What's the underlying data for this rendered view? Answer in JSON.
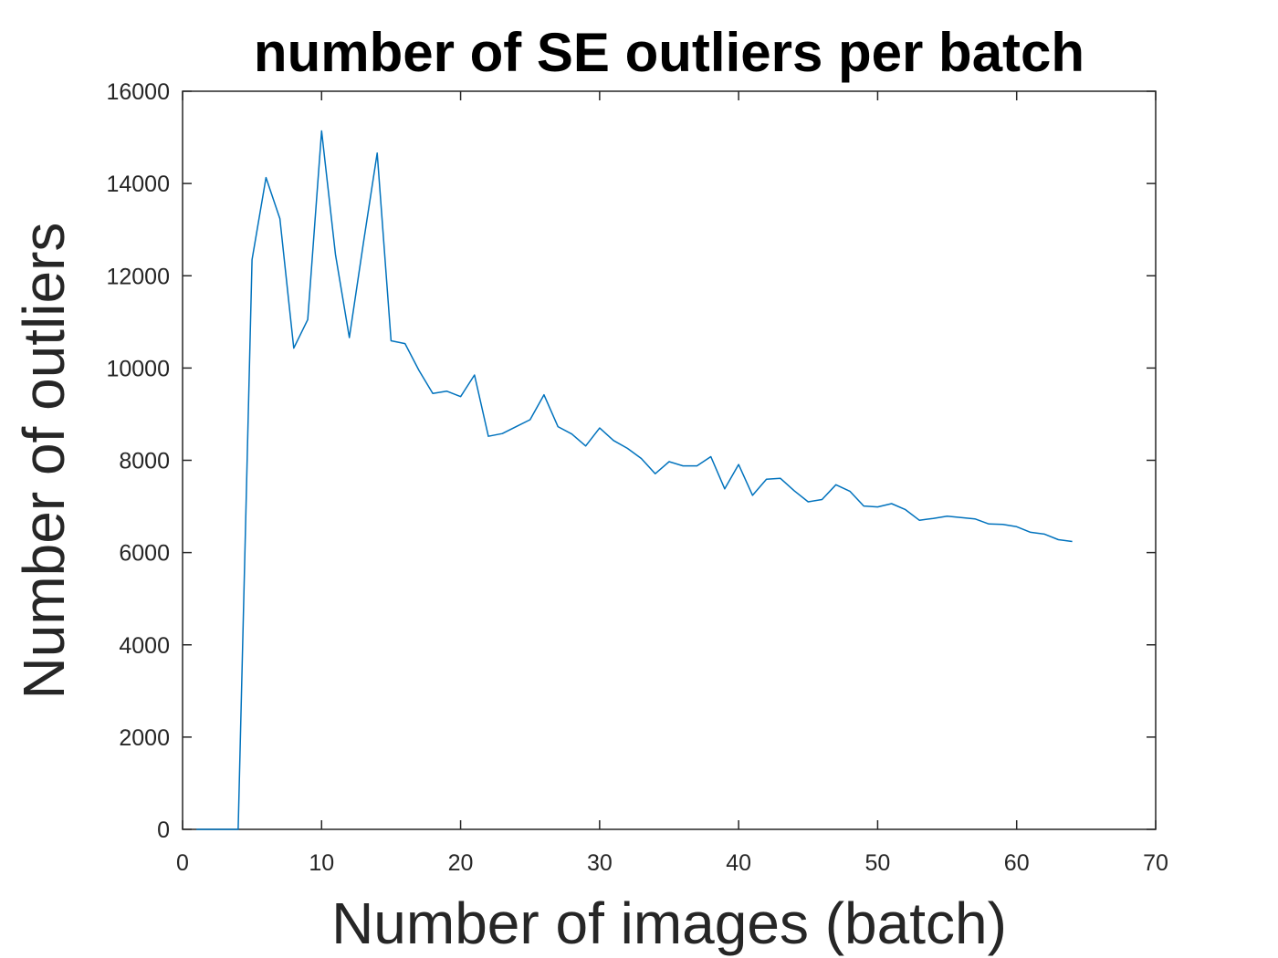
{
  "chart_data": {
    "type": "line",
    "title": "number of SE outliers per batch",
    "xlabel": "Number of images (batch)",
    "ylabel": "Number of outliers",
    "xlim": [
      0,
      70
    ],
    "ylim": [
      0,
      16000
    ],
    "xticks": [
      0,
      10,
      20,
      30,
      40,
      50,
      60,
      70
    ],
    "yticks": [
      0,
      2000,
      4000,
      6000,
      8000,
      10000,
      12000,
      14000,
      16000
    ],
    "grid": false,
    "box": true,
    "series": [
      {
        "color": "#0072BD",
        "x": [
          1,
          2,
          3,
          4,
          5,
          6,
          7,
          8,
          9,
          10,
          11,
          12,
          13,
          14,
          15,
          16,
          17,
          18,
          19,
          20,
          21,
          22,
          23,
          24,
          25,
          26,
          27,
          28,
          29,
          30,
          31,
          32,
          33,
          34,
          35,
          36,
          37,
          38,
          39,
          40,
          41,
          42,
          43,
          44,
          45,
          46,
          47,
          48,
          49,
          50,
          51,
          52,
          53,
          54,
          55,
          56,
          57,
          58,
          59,
          60,
          61,
          62,
          63,
          64
        ],
        "y": [
          0,
          0,
          0,
          0,
          12350,
          14130,
          13240,
          10430,
          11050,
          15140,
          12460,
          10660,
          12700,
          14660,
          10590,
          10530,
          9950,
          9450,
          9500,
          9380,
          9850,
          8520,
          8580,
          8730,
          8880,
          9420,
          8730,
          8570,
          8310,
          8700,
          8430,
          8260,
          8040,
          7710,
          7970,
          7880,
          7880,
          8080,
          7380,
          7910,
          7240,
          7590,
          7610,
          7340,
          7100,
          7150,
          7470,
          7330,
          7010,
          6990,
          7060,
          6930,
          6700,
          6740,
          6790,
          6760,
          6730,
          6620,
          6610,
          6560,
          6440,
          6400,
          6280,
          6240
        ]
      }
    ]
  }
}
